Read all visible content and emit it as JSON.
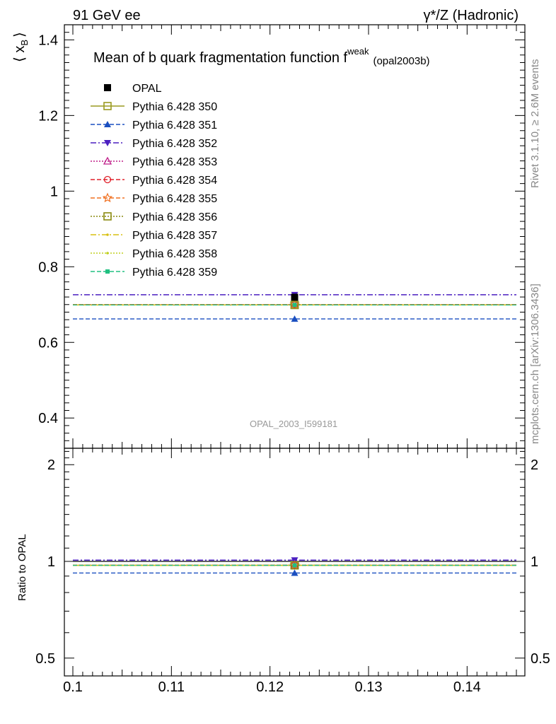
{
  "header": {
    "left": "91 GeV ee",
    "right_prefix": "γ*/Z (Hadronic)"
  },
  "side_text": {
    "rivet": "Rivet 3.1.10, ≥ 2.6M events",
    "mcplots": "mcplots.cern.ch [arXiv:1306.3436]"
  },
  "chart_data": {
    "type": "scatter",
    "title_main": "Mean of b quark fragmentation function f",
    "title_sup": "weak",
    "title_tag": "(opal2003b)",
    "analysis_id": "OPAL_2003_I599181",
    "ylabel_main": "⟨ x",
    "ylabel_sub": "B",
    "ylabel_close": "⟩",
    "ylabel_ratio": "Ratio to OPAL",
    "x_range": [
      0.1,
      0.145
    ],
    "main_ylim": [
      0.32,
      1.44
    ],
    "ratio_ylim": [
      0.44,
      2.25
    ],
    "x_ticks": [
      {
        "v": 0.1,
        "label": "0.1"
      },
      {
        "v": 0.11,
        "label": "0.11"
      },
      {
        "v": 0.12,
        "label": "0.12"
      },
      {
        "v": 0.13,
        "label": "0.13"
      },
      {
        "v": 0.14,
        "label": "0.14"
      }
    ],
    "main_y_ticks": [
      {
        "v": 0.4,
        "label": "0.4"
      },
      {
        "v": 0.6,
        "label": "0.6"
      },
      {
        "v": 0.8,
        "label": "0.8"
      },
      {
        "v": 1.0,
        "label": "1"
      },
      {
        "v": 1.2,
        "label": "1.2"
      },
      {
        "v": 1.4,
        "label": "1.4"
      }
    ],
    "ratio_y_ticks": [
      {
        "v": 0.5,
        "label": "0.5"
      },
      {
        "v": 1.0,
        "label": "1"
      },
      {
        "v": 2.0,
        "label": "2"
      }
    ],
    "point_x": 0.1225,
    "data": {
      "name": "OPAL",
      "value": 0.7193,
      "color": "#000000",
      "marker": "square-filled"
    },
    "series": [
      {
        "name": "Pythia 6.428 350",
        "value": 0.699,
        "ratio": 0.972,
        "color": "#9a9a20",
        "dash": "",
        "marker": "square-open"
      },
      {
        "name": "Pythia 6.428 351",
        "value": 0.662,
        "ratio": 0.92,
        "color": "#1a4fc0",
        "dash": "6,3",
        "marker": "triangle-up-filled"
      },
      {
        "name": "Pythia 6.428 352",
        "value": 0.726,
        "ratio": 1.009,
        "color": "#4b1fc0",
        "dash": "8,3,2,3",
        "marker": "triangle-down-filled"
      },
      {
        "name": "Pythia 6.428 353",
        "value": 0.7,
        "ratio": 0.973,
        "color": "#c0208a",
        "dash": "2,2",
        "marker": "triangle-up-open"
      },
      {
        "name": "Pythia 6.428 354",
        "value": 0.7,
        "ratio": 0.973,
        "color": "#e0202a",
        "dash": "6,3",
        "marker": "circle-open"
      },
      {
        "name": "Pythia 6.428 355",
        "value": 0.7,
        "ratio": 0.973,
        "color": "#f07020",
        "dash": "6,3",
        "marker": "star-open"
      },
      {
        "name": "Pythia 6.428 356",
        "value": 0.699,
        "ratio": 0.972,
        "color": "#8a8a10",
        "dash": "2,2",
        "marker": "square-open"
      },
      {
        "name": "Pythia 6.428 357",
        "value": 0.699,
        "ratio": 0.972,
        "color": "#d8c010",
        "dash": "8,3,2,3",
        "marker": "dot"
      },
      {
        "name": "Pythia 6.428 358",
        "value": 0.699,
        "ratio": 0.972,
        "color": "#c0d020",
        "dash": "2,2",
        "marker": "dot"
      },
      {
        "name": "Pythia 6.428 359",
        "value": 0.699,
        "ratio": 0.972,
        "color": "#20c080",
        "dash": "6,3",
        "marker": "square-filled-small"
      }
    ]
  }
}
